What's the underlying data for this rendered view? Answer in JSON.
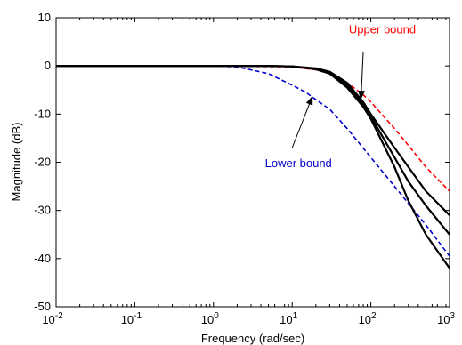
{
  "chart_data": {
    "type": "line",
    "xlabel": "Frequency (rad/sec)",
    "ylabel": "Magnitude (dB)",
    "xscale": "log",
    "xlim": [
      0.01,
      1000
    ],
    "ylim": [
      -50,
      10
    ],
    "x_ticks": [
      {
        "value": 0.01,
        "base": "10",
        "exp": "-2"
      },
      {
        "value": 0.1,
        "base": "10",
        "exp": "-1"
      },
      {
        "value": 1,
        "base": "10",
        "exp": "0"
      },
      {
        "value": 10,
        "base": "10",
        "exp": "1"
      },
      {
        "value": 100,
        "base": "10",
        "exp": "2"
      },
      {
        "value": 1000,
        "base": "10",
        "exp": "3"
      }
    ],
    "y_ticks": [
      10,
      0,
      -10,
      -20,
      -30,
      -40,
      -50
    ],
    "grid": false,
    "series": [
      {
        "color": "#ff0000",
        "dash": true,
        "x": [
          0.01,
          1,
          10,
          20,
          30,
          50,
          80,
          100,
          200,
          300,
          500,
          1000
        ],
        "y": [
          0,
          0,
          -0.2,
          -0.8,
          -1.6,
          -3.5,
          -6.0,
          -7.5,
          -13,
          -16.5,
          -21,
          -26
        ]
      },
      {
        "color": "#0000cc",
        "dash": true,
        "x": [
          0.01,
          1,
          2,
          5,
          10,
          15,
          20,
          30,
          50,
          100,
          200,
          500,
          1000
        ],
        "y": [
          0,
          0,
          -0.2,
          -1.6,
          -4.0,
          -5.5,
          -7.0,
          -9.0,
          -13.0,
          -19.0,
          -25.0,
          -33.0,
          -39.5
        ]
      },
      {
        "color": "#000000",
        "dash": false,
        "x": [
          0.01,
          5,
          10,
          20,
          30,
          50,
          80,
          100,
          200,
          300,
          500,
          1000
        ],
        "y": [
          0,
          0,
          -0.1,
          -0.5,
          -1.2,
          -3.5,
          -7.5,
          -10,
          -17,
          -21,
          -26,
          -31
        ]
      },
      {
        "color": "#000000",
        "dash": false,
        "x": [
          0.01,
          5,
          10,
          20,
          30,
          50,
          80,
          100,
          200,
          300,
          500,
          1000
        ],
        "y": [
          0,
          0,
          -0.1,
          -0.6,
          -1.4,
          -4.0,
          -8.0,
          -10.5,
          -19,
          -24,
          -29,
          -35
        ]
      },
      {
        "color": "#000000",
        "dash": false,
        "x": [
          0.01,
          5,
          10,
          20,
          30,
          50,
          80,
          100,
          200,
          300,
          500,
          1000
        ],
        "y": [
          0,
          0,
          -0.1,
          -0.7,
          -1.6,
          -4.5,
          -8.5,
          -11.0,
          -21,
          -28,
          -35,
          -42
        ]
      }
    ],
    "annotations": [
      {
        "text": "Upper bound",
        "color": "#ff0000",
        "label_x": 140,
        "label_y": 7.5,
        "arrow_from": [
          80,
          3.0
        ],
        "arrow_to": [
          75,
          -6.8
        ]
      },
      {
        "text": "Lower bound",
        "color": "#0000cc",
        "label_x": 12,
        "label_y": -20.3,
        "arrow_from": [
          10,
          -17.0
        ],
        "arrow_to": [
          18,
          -6.4
        ]
      }
    ]
  }
}
